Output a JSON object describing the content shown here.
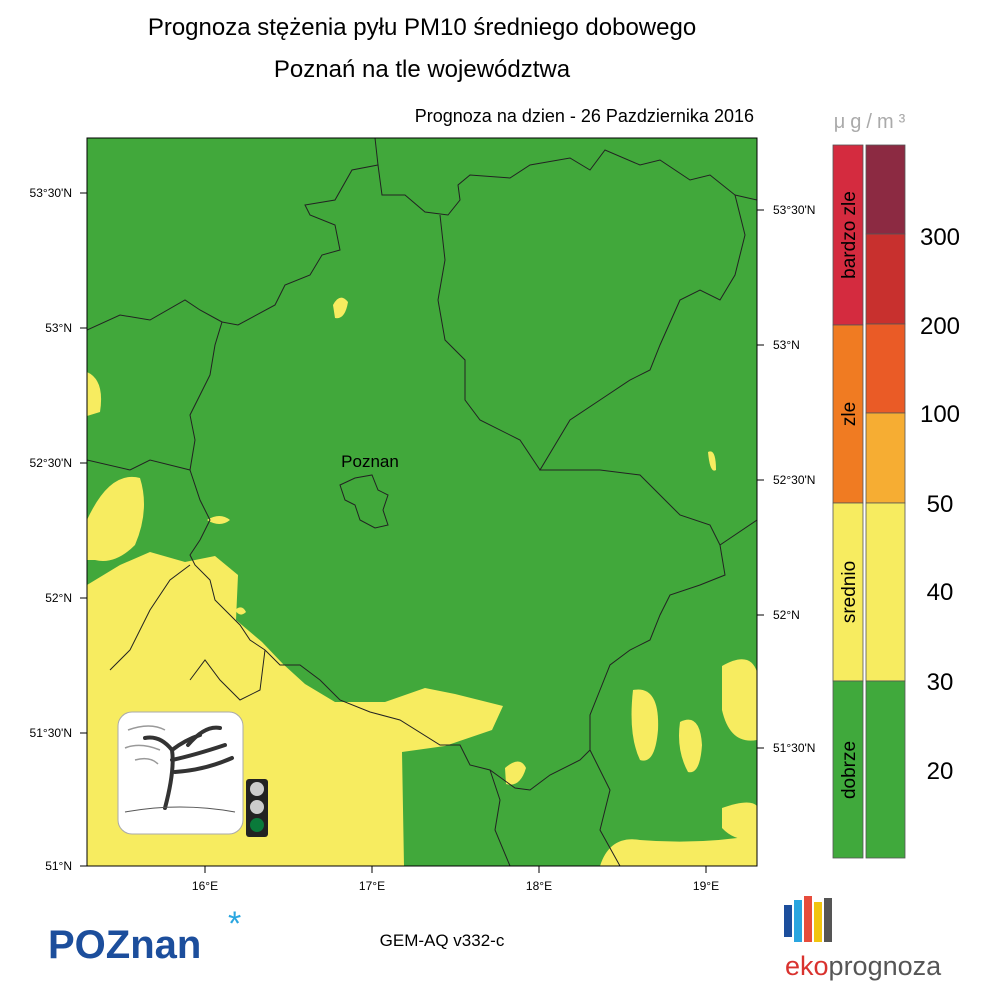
{
  "header": {
    "title_line1": "Prognoza stężenia pyłu PM10 średniego dobowego",
    "title_line2": "Poznań na tle województwa",
    "forecast_date": "Prognoza na dzien -  26 Pazdziernika 2016"
  },
  "map": {
    "city_label": "Poznan",
    "lat_labels_left": [
      "53°30'N",
      "53°N",
      "52°30'N",
      "52°N",
      "51°30'N",
      "51°N"
    ],
    "lat_labels_right": [
      "53°30'N",
      "53°N",
      "52°30'N",
      "52°N",
      "51°30'N"
    ],
    "lon_labels": [
      "16°E",
      "17°E",
      "18°E",
      "19°E"
    ]
  },
  "legend": {
    "unit": "μg/m³",
    "categories": [
      "bardzo zle",
      "zle",
      "srednio",
      "dobrze"
    ],
    "thresholds": [
      "300",
      "200",
      "100",
      "50",
      "40",
      "30",
      "20"
    ]
  },
  "footer": {
    "city_logo": "POZnan",
    "model": "GEM-AQ v332-c",
    "brand_eko": "eko",
    "brand_prognoza": "prognoza"
  }
}
